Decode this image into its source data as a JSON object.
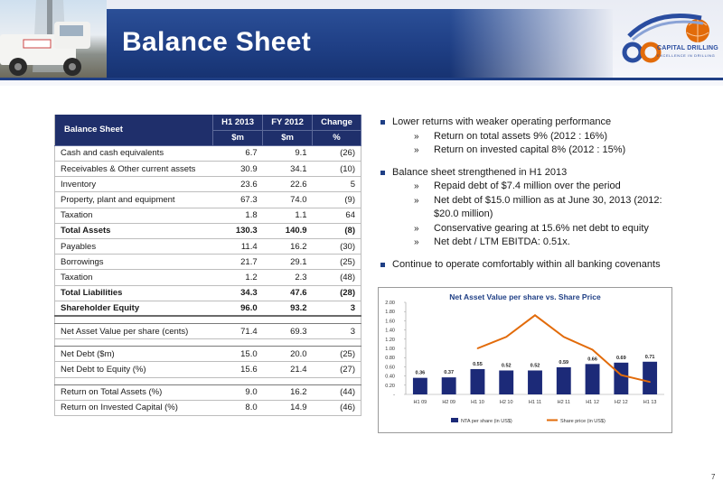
{
  "header": {
    "title": "Balance Sheet",
    "logo_name": "CAPITAL DRILLING",
    "logo_tagline": "EXCELLENCE IN DRILLING"
  },
  "table": {
    "header": {
      "label": "Balance Sheet",
      "cols": [
        "H1 2013",
        "FY 2012",
        "Change"
      ],
      "units": [
        "$m",
        "$m",
        "%"
      ]
    },
    "rows": [
      [
        "Cash and cash equivalents",
        "6.7",
        "9.1",
        "(26)"
      ],
      [
        "Receivables & Other current assets",
        "30.9",
        "34.1",
        "(10)"
      ],
      [
        "Inventory",
        "23.6",
        "22.6",
        "5"
      ],
      [
        "Property, plant and equipment",
        "67.3",
        "74.0",
        "(9)"
      ],
      [
        "Taxation",
        "1.8",
        "1.1",
        "64"
      ],
      [
        "Total Assets",
        "130.3",
        "140.9",
        "(8)"
      ],
      [
        "Payables",
        "11.4",
        "16.2",
        "(30)"
      ],
      [
        "Borrowings",
        "21.7",
        "29.1",
        "(25)"
      ],
      [
        "Taxation",
        "1.2",
        "2.3",
        "(48)"
      ],
      [
        "Total Liabilities",
        "34.3",
        "47.6",
        "(28)"
      ],
      [
        "Shareholder Equity",
        "96.0",
        "93.2",
        "3"
      ],
      [
        "Net Asset Value per share (cents)",
        "71.4",
        "69.3",
        "3"
      ],
      [
        "Net Debt  ($m)",
        "15.0",
        "20.0",
        "(25)"
      ],
      [
        "Net Debt to Equity (%)",
        "15.6",
        "21.4",
        "(27)"
      ],
      [
        "Return on Total Assets (%)",
        "9.0",
        "16.2",
        "(44)"
      ],
      [
        "Return on Invested Capital (%)",
        "8.0",
        "14.9",
        "(46)"
      ]
    ]
  },
  "bullets": {
    "b1": "Lower returns with weaker operating performance",
    "b1_s1": "Return on total assets 9% (2012 : 16%)",
    "b1_s2": "Return on invested capital 8% (2012 : 15%)",
    "b2": "Balance sheet strengthened in H1 2013",
    "b2_s1": "Repaid debt of $7.4 million over the period",
    "b2_s2a": "Net debt of $15.0 million as at June 30, 2013 (2012:",
    "b2_s2b": "$20.0 million)",
    "b2_s3": "Conservative gearing at 15.6% net debt to equity",
    "b2_s4": "Net debt / LTM EBITDA:  0.51x.",
    "b3": "Continue to operate comfortably within all banking covenants",
    "sub_marker": "»"
  },
  "chart_data": {
    "type": "bar",
    "title": "Net Asset Value per share vs. Share Price",
    "categories": [
      "H1 09",
      "H2 09",
      "H1 10",
      "H2 10",
      "H1 11",
      "H2 11",
      "H1 12",
      "H2 12",
      "H1 13"
    ],
    "series": [
      {
        "name": "NTA per share (in US$)",
        "type": "bar",
        "values": [
          0.36,
          0.37,
          0.55,
          0.52,
          0.52,
          0.59,
          0.66,
          0.69,
          0.71
        ],
        "labels": [
          "0.36",
          "0.37",
          "0.55",
          "0.52",
          "0.52",
          "0.59",
          "0.66",
          "0.69",
          "0.71"
        ]
      },
      {
        "name": "Share price (in US$)",
        "type": "line",
        "values": [
          null,
          null,
          1.0,
          1.25,
          1.72,
          1.25,
          0.97,
          0.42,
          0.27
        ]
      }
    ],
    "yticks": [
      "-",
      "0.20",
      "0.40",
      "0.60",
      "0.80",
      "1.00",
      "1.20",
      "1.40",
      "1.60",
      "1.80",
      "2.00"
    ],
    "ylim": [
      0,
      2.0
    ],
    "legend": "bottom",
    "colors": {
      "bar": "#1c2a78",
      "line": "#e26b0a"
    }
  },
  "page_number": "7"
}
